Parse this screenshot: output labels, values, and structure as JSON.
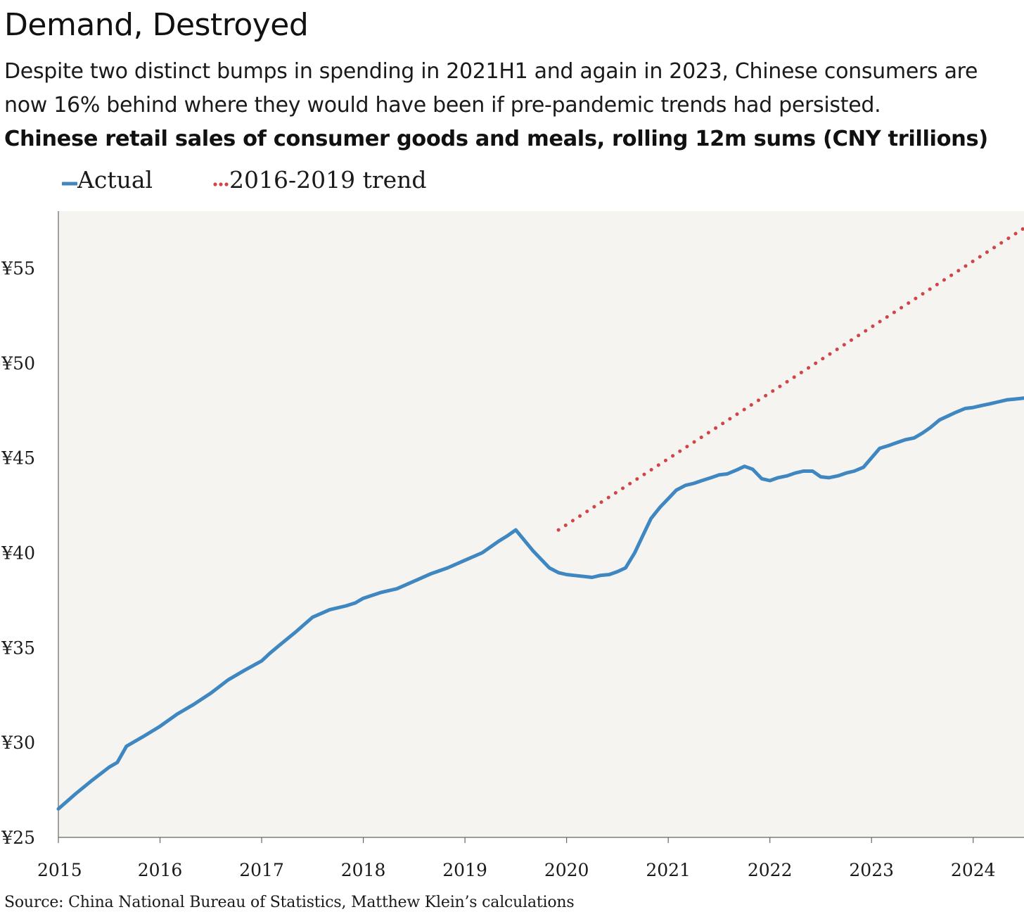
{
  "header": {
    "title": "Demand, Destroyed",
    "subtitle": "Despite two distinct bumps in spending in 2021H1 and again in 2023, Chinese consumers are now 16% behind where they would have been if pre-pandemic trends had persisted."
  },
  "footer": {
    "source": "Source: China National Bureau of Statistics, Matthew Klein’s calculations"
  },
  "colors": {
    "actual": "#3f87c0",
    "trend": "#d04547",
    "plot_background": "#f5f4f1",
    "axis": "#666666"
  },
  "chart_data": {
    "type": "line",
    "title": "Chinese retail sales of consumer goods and meals, rolling 12m sums (CNY trillions)",
    "xlabel": "",
    "ylabel": "",
    "xlim": [
      2015.0,
      2024.5
    ],
    "ylim": [
      25,
      58
    ],
    "x_ticks": [
      2015,
      2016,
      2017,
      2018,
      2019,
      2020,
      2021,
      2022,
      2023,
      2024
    ],
    "x_tick_labels": [
      "2015",
      "2016",
      "2017",
      "2018",
      "2019",
      "2020",
      "2021",
      "2022",
      "2023",
      "2024"
    ],
    "y_ticks": [
      25,
      30,
      35,
      40,
      45,
      50,
      55
    ],
    "y_tick_labels": [
      "¥25",
      "¥30",
      "¥35",
      "¥40",
      "¥45",
      "¥50",
      "¥55"
    ],
    "grid": false,
    "legend": "top-left",
    "series": [
      {
        "name": "Actual",
        "style": "solid",
        "x": [
          2015.0,
          2015.17,
          2015.33,
          2015.5,
          2015.58,
          2015.67,
          2015.83,
          2016.0,
          2016.17,
          2016.33,
          2016.5,
          2016.67,
          2016.83,
          2017.0,
          2017.08,
          2017.17,
          2017.33,
          2017.5,
          2017.67,
          2017.83,
          2017.92,
          2018.0,
          2018.17,
          2018.33,
          2018.5,
          2018.67,
          2018.83,
          2019.0,
          2019.17,
          2019.25,
          2019.33,
          2019.42,
          2019.5,
          2019.67,
          2019.83,
          2019.92,
          2020.0,
          2020.08,
          2020.17,
          2020.25,
          2020.33,
          2020.42,
          2020.5,
          2020.58,
          2020.67,
          2020.75,
          2020.83,
          2020.92,
          2021.0,
          2021.08,
          2021.17,
          2021.25,
          2021.33,
          2021.42,
          2021.5,
          2021.58,
          2021.67,
          2021.75,
          2021.83,
          2021.92,
          2022.0,
          2022.08,
          2022.17,
          2022.25,
          2022.33,
          2022.42,
          2022.5,
          2022.58,
          2022.67,
          2022.75,
          2022.83,
          2022.92,
          2023.0,
          2023.08,
          2023.17,
          2023.25,
          2023.33,
          2023.42,
          2023.5,
          2023.58,
          2023.67,
          2023.75,
          2023.83,
          2023.92,
          2024.0,
          2024.08,
          2024.17,
          2024.25,
          2024.33,
          2024.42,
          2024.5
        ],
        "y": [
          26.5,
          27.3,
          28.0,
          28.7,
          28.95,
          29.8,
          30.3,
          30.85,
          31.5,
          32.0,
          32.6,
          33.3,
          33.8,
          34.3,
          34.7,
          35.1,
          35.8,
          36.6,
          37.0,
          37.2,
          37.35,
          37.6,
          37.9,
          38.1,
          38.5,
          38.9,
          39.2,
          39.6,
          40.0,
          40.3,
          40.6,
          40.9,
          41.2,
          40.1,
          39.2,
          38.95,
          38.85,
          38.8,
          38.75,
          38.7,
          38.8,
          38.85,
          39.0,
          39.2,
          40.0,
          40.9,
          41.8,
          42.4,
          42.85,
          43.3,
          43.55,
          43.65,
          43.8,
          43.95,
          44.1,
          44.15,
          44.35,
          44.55,
          44.4,
          43.9,
          43.8,
          43.95,
          44.05,
          44.2,
          44.3,
          44.3,
          44.0,
          43.95,
          44.05,
          44.2,
          44.3,
          44.5,
          45.0,
          45.5,
          45.65,
          45.8,
          45.95,
          46.05,
          46.3,
          46.6,
          47.0,
          47.2,
          47.4,
          47.6,
          47.65,
          47.75,
          47.85,
          47.95,
          48.05,
          48.1,
          48.15
        ]
      },
      {
        "name": "2016-2019 trend",
        "style": "dotted",
        "x": [
          2019.92,
          2024.5
        ],
        "y": [
          41.2,
          57.1
        ]
      }
    ]
  }
}
